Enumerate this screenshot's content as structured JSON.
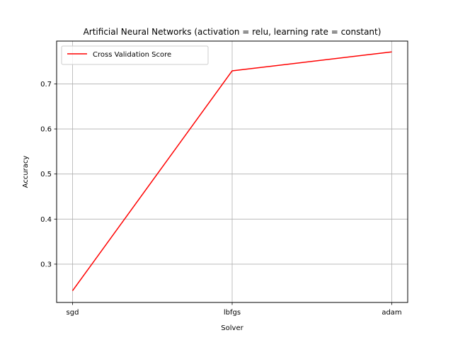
{
  "chart_data": {
    "type": "line",
    "title": "Artificial Neural Networks (activation = relu, learning rate = constant)",
    "xlabel": "Solver",
    "ylabel": "Accuracy",
    "categories": [
      "sgd",
      "lbfgs",
      "adam"
    ],
    "series": [
      {
        "name": "Cross Validation Score",
        "values": [
          0.241,
          0.729,
          0.771
        ],
        "color": "#ff0000"
      }
    ],
    "yticks": [
      0.3,
      0.4,
      0.5,
      0.6,
      0.7
    ],
    "ytick_labels": [
      "0.3",
      "0.4",
      "0.5",
      "0.6",
      "0.7"
    ],
    "ylim": [
      0.215,
      0.795
    ],
    "grid": true,
    "legend_position": "upper-left"
  }
}
